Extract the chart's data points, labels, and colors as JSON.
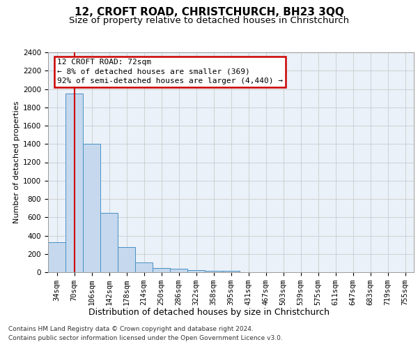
{
  "title1": "12, CROFT ROAD, CHRISTCHURCH, BH23 3QQ",
  "title2": "Size of property relative to detached houses in Christchurch",
  "xlabel": "Distribution of detached houses by size in Christchurch",
  "ylabel": "Number of detached properties",
  "categories": [
    "34sqm",
    "70sqm",
    "106sqm",
    "142sqm",
    "178sqm",
    "214sqm",
    "250sqm",
    "286sqm",
    "322sqm",
    "358sqm",
    "395sqm",
    "431sqm",
    "467sqm",
    "503sqm",
    "539sqm",
    "575sqm",
    "611sqm",
    "647sqm",
    "683sqm",
    "719sqm",
    "755sqm"
  ],
  "values": [
    325,
    1950,
    1400,
    650,
    275,
    105,
    42,
    35,
    25,
    18,
    15,
    0,
    0,
    0,
    0,
    0,
    0,
    0,
    0,
    0,
    0
  ],
  "bar_color": "#c5d8ed",
  "bar_edge_color": "#4a90c4",
  "grid_color": "#cccccc",
  "bg_color": "#eaf1f8",
  "vline_x": 1,
  "vline_color": "#cc0000",
  "annotation_text": "12 CROFT ROAD: 72sqm\n← 8% of detached houses are smaller (369)\n92% of semi-detached houses are larger (4,440) →",
  "annotation_box_color": "#cc0000",
  "ylim": [
    0,
    2400
  ],
  "yticks": [
    0,
    200,
    400,
    600,
    800,
    1000,
    1200,
    1400,
    1600,
    1800,
    2000,
    2200,
    2400
  ],
  "footnote1": "Contains HM Land Registry data © Crown copyright and database right 2024.",
  "footnote2": "Contains public sector information licensed under the Open Government Licence v3.0.",
  "title1_fontsize": 11,
  "title2_fontsize": 9.5,
  "xlabel_fontsize": 9,
  "ylabel_fontsize": 8,
  "tick_fontsize": 7.5,
  "footnote_fontsize": 6.5,
  "annotation_fontsize": 8
}
